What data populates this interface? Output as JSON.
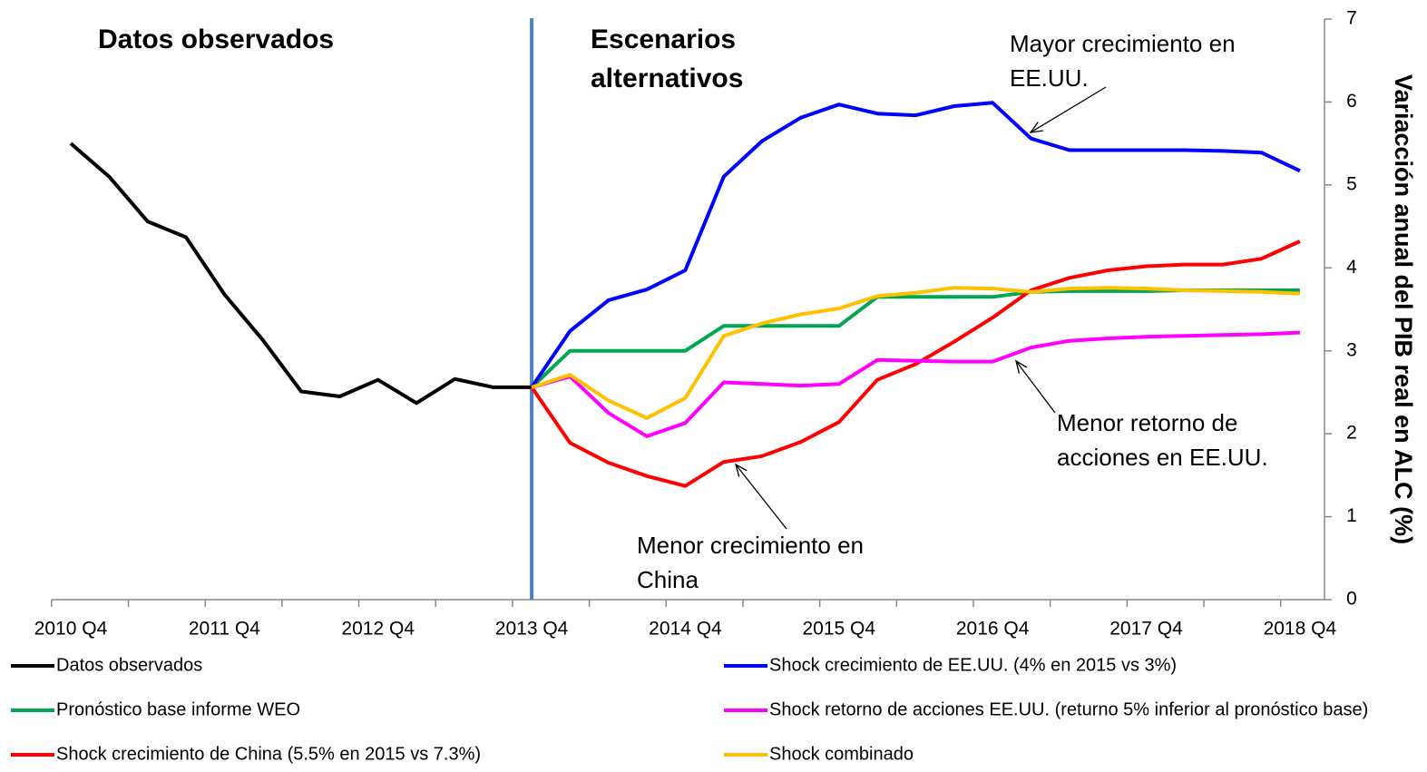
{
  "chart_data": {
    "type": "line",
    "y_label": "Variacción anual del PIB real en ALC (%)",
    "categories": [
      "2010 Q4",
      null,
      null,
      null,
      "2011 Q4",
      null,
      null,
      null,
      "2012 Q4",
      null,
      null,
      null,
      "2013 Q4",
      null,
      null,
      null,
      "2014 Q4",
      null,
      null,
      null,
      "2015 Q4",
      null,
      null,
      null,
      "2016 Q4",
      null,
      null,
      null,
      "2017 Q4",
      null,
      null,
      null,
      "2018 Q4"
    ],
    "ylim": [
      0,
      7
    ],
    "yticks": [
      0,
      1,
      2,
      3,
      4,
      5,
      6,
      7
    ],
    "annotations": {
      "observed": "Datos observados",
      "scenarios": [
        "Escenarios",
        "alternativos"
      ],
      "us_growth": [
        "Mayor crecimiento en",
        "EE.UU."
      ],
      "us_stocks": [
        "Menor retorno de",
        "acciones en EE.UU."
      ],
      "china": [
        "Menor crecimiento en",
        "China"
      ]
    },
    "series": [
      {
        "name": "Datos observados",
        "color": "#000000",
        "values": [
          5.5,
          5.1,
          4.56,
          4.37,
          3.68,
          3.13,
          2.51,
          2.45,
          2.65,
          2.37,
          2.66,
          2.56,
          2.56,
          null,
          null,
          null,
          null,
          null,
          null,
          null,
          null,
          null,
          null,
          null,
          null,
          null,
          null,
          null,
          null,
          null,
          null,
          null,
          null
        ]
      },
      {
        "name": "Pronóstico base informe WEO",
        "color": "#00a650",
        "values": [
          null,
          null,
          null,
          null,
          null,
          null,
          null,
          null,
          null,
          null,
          null,
          null,
          2.56,
          3.0,
          3.0,
          3.0,
          3.0,
          3.3,
          3.3,
          3.3,
          3.3,
          3.65,
          3.65,
          3.65,
          3.65,
          3.71,
          3.72,
          3.72,
          3.72,
          3.73,
          3.73,
          3.73,
          3.73
        ]
      },
      {
        "name": "Shock crecimiento de China (5.5% en 2015 vs 7.3%)",
        "color": "#ff0000",
        "values": [
          null,
          null,
          null,
          null,
          null,
          null,
          null,
          null,
          null,
          null,
          null,
          null,
          2.56,
          1.89,
          1.65,
          1.49,
          1.37,
          1.66,
          1.73,
          1.9,
          2.14,
          2.65,
          2.84,
          3.11,
          3.4,
          3.73,
          3.88,
          3.97,
          4.02,
          4.04,
          4.04,
          4.11,
          4.32
        ]
      },
      {
        "name": "Shock crecimiento de EE.UU. (4% en 2015 vs 3%)",
        "color": "#0000ff",
        "values": [
          null,
          null,
          null,
          null,
          null,
          null,
          null,
          null,
          null,
          null,
          null,
          null,
          2.56,
          3.24,
          3.61,
          3.74,
          3.97,
          5.1,
          5.53,
          5.81,
          5.97,
          5.86,
          5.84,
          5.95,
          5.99,
          5.56,
          5.42,
          5.42,
          5.42,
          5.42,
          5.41,
          5.39,
          5.17
        ]
      },
      {
        "name": "Shock retorno de acciones EE.UU. (returno 5% inferior al pronóstico base)",
        "color": "#ff00ff",
        "values": [
          null,
          null,
          null,
          null,
          null,
          null,
          null,
          null,
          null,
          null,
          null,
          null,
          2.56,
          2.69,
          2.25,
          1.97,
          2.13,
          2.62,
          2.6,
          2.58,
          2.6,
          2.89,
          2.88,
          2.87,
          2.87,
          3.04,
          3.12,
          3.15,
          3.17,
          3.18,
          3.19,
          3.2,
          3.22
        ]
      },
      {
        "name": "Shock combinado",
        "color": "#ffc000",
        "values": [
          null,
          null,
          null,
          null,
          null,
          null,
          null,
          null,
          null,
          null,
          null,
          null,
          2.56,
          2.71,
          2.4,
          2.19,
          2.43,
          3.18,
          3.33,
          3.44,
          3.51,
          3.66,
          3.7,
          3.76,
          3.75,
          3.71,
          3.75,
          3.76,
          3.75,
          3.73,
          3.72,
          3.71,
          3.69
        ]
      }
    ]
  }
}
